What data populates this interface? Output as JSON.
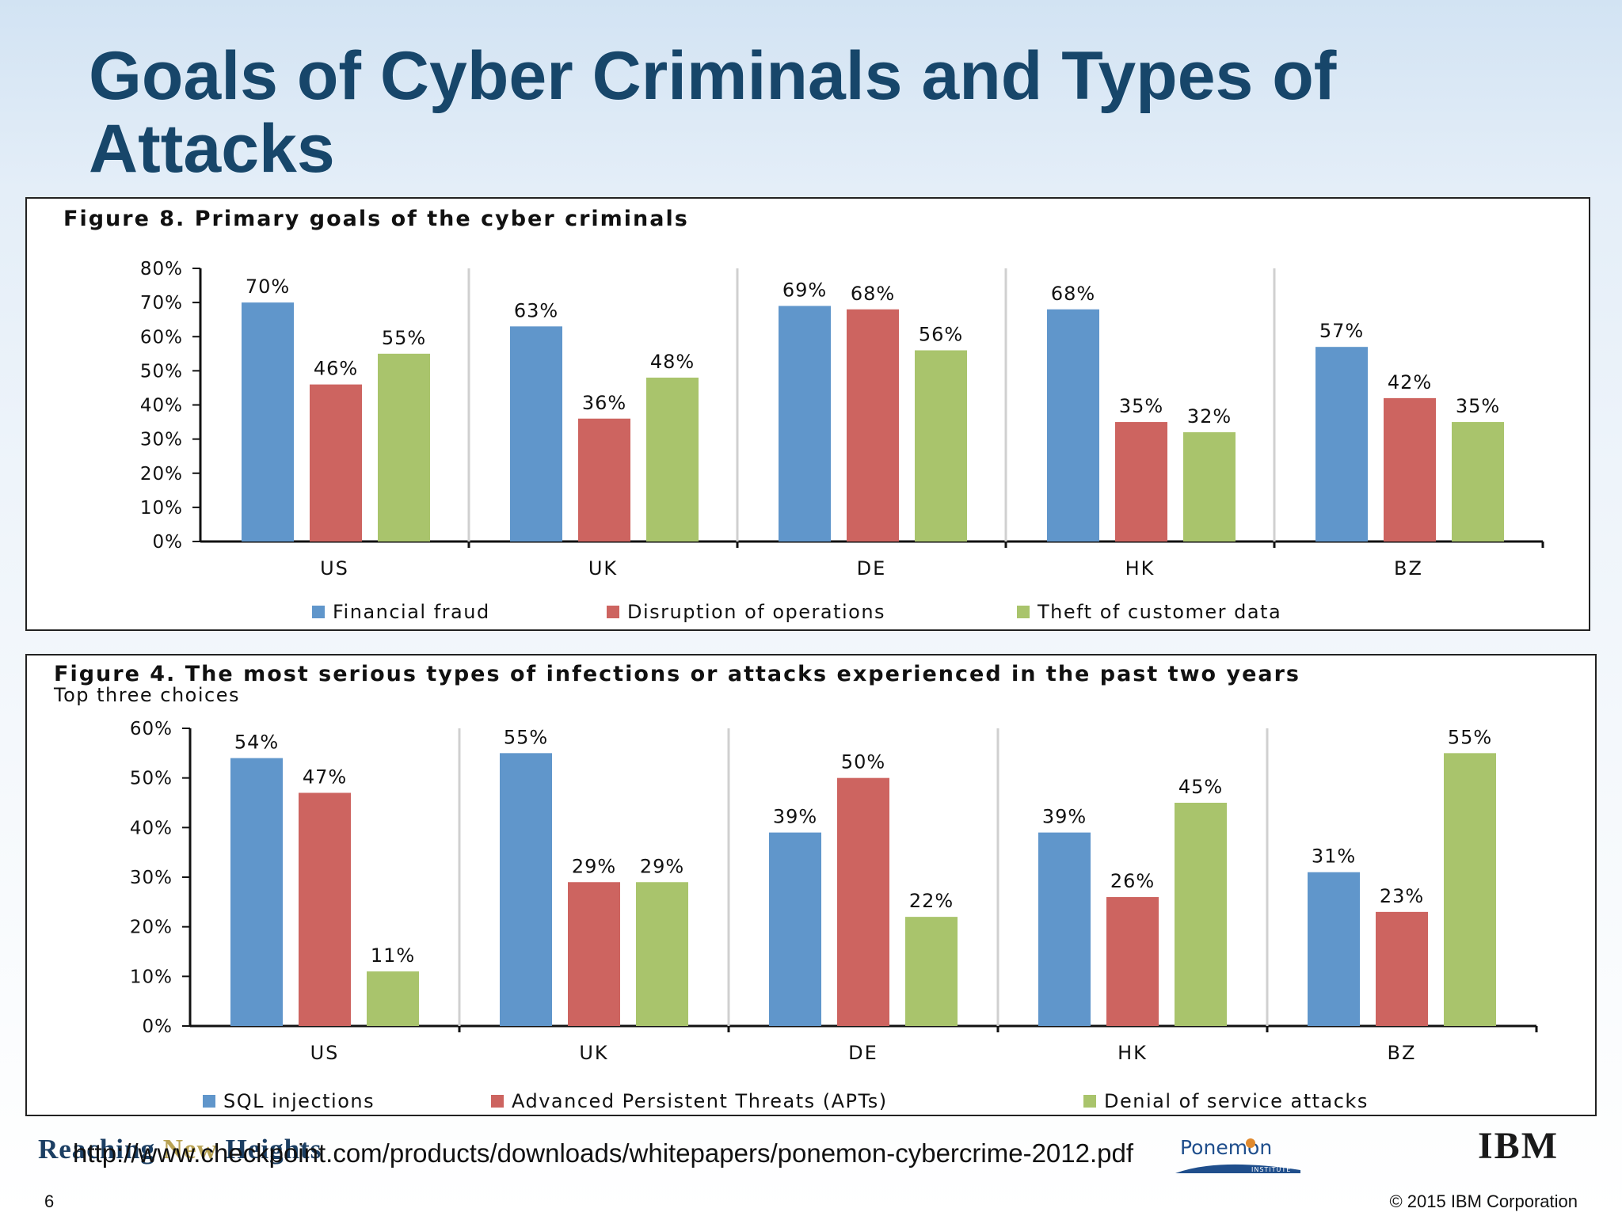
{
  "slide": {
    "title": "Goals of Cyber Criminals and Types of Attacks",
    "page_number": "6",
    "copyright": "© 2015 IBM Corporation",
    "footer_logo": [
      "Reaching",
      "New",
      "Heights"
    ],
    "source_url": "http://www.checkpoint.com/products/downloads/whitepapers/ponemon-cybercrime-2012.pdf",
    "ponemon_logo": "Ponemon",
    "ponemon_sub": "INSTITUTE",
    "ibm_logo": "IBM"
  },
  "colors": {
    "series1": "#6096cb",
    "series2": "#cd6460",
    "series3": "#a9c46c",
    "title": "#17466a"
  },
  "chart_data": [
    {
      "type": "bar",
      "title": "Figure 8. Primary goals of the cyber criminals",
      "subtitle": "",
      "categories": [
        "US",
        "UK",
        "DE",
        "HK",
        "BZ"
      ],
      "series": [
        {
          "name": "Financial fraud",
          "values": [
            70,
            63,
            69,
            68,
            57
          ]
        },
        {
          "name": "Disruption of operations",
          "values": [
            46,
            36,
            68,
            35,
            42
          ]
        },
        {
          "name": "Theft of customer data",
          "values": [
            55,
            48,
            56,
            32,
            35
          ]
        }
      ],
      "ylim": [
        0,
        80
      ],
      "yticks": [
        "0%",
        "10%",
        "20%",
        "30%",
        "40%",
        "50%",
        "60%",
        "70%",
        "80%"
      ],
      "value_suffix": "%",
      "legend_position": "bottom",
      "grid": false
    },
    {
      "type": "bar",
      "title": "Figure 4. The most serious types of infections or attacks experienced in the past two years",
      "subtitle": "Top three choices",
      "categories": [
        "US",
        "UK",
        "DE",
        "HK",
        "BZ"
      ],
      "series": [
        {
          "name": "SQL injections",
          "values": [
            54,
            55,
            39,
            39,
            31
          ]
        },
        {
          "name": "Advanced Persistent Threats (APTs)",
          "values": [
            47,
            29,
            50,
            26,
            23
          ]
        },
        {
          "name": "Denial of service attacks",
          "values": [
            11,
            29,
            22,
            45,
            55
          ]
        }
      ],
      "ylim": [
        0,
        60
      ],
      "yticks": [
        "0%",
        "10%",
        "20%",
        "30%",
        "40%",
        "50%",
        "60%"
      ],
      "value_suffix": "%",
      "legend_position": "bottom",
      "grid": false
    }
  ]
}
